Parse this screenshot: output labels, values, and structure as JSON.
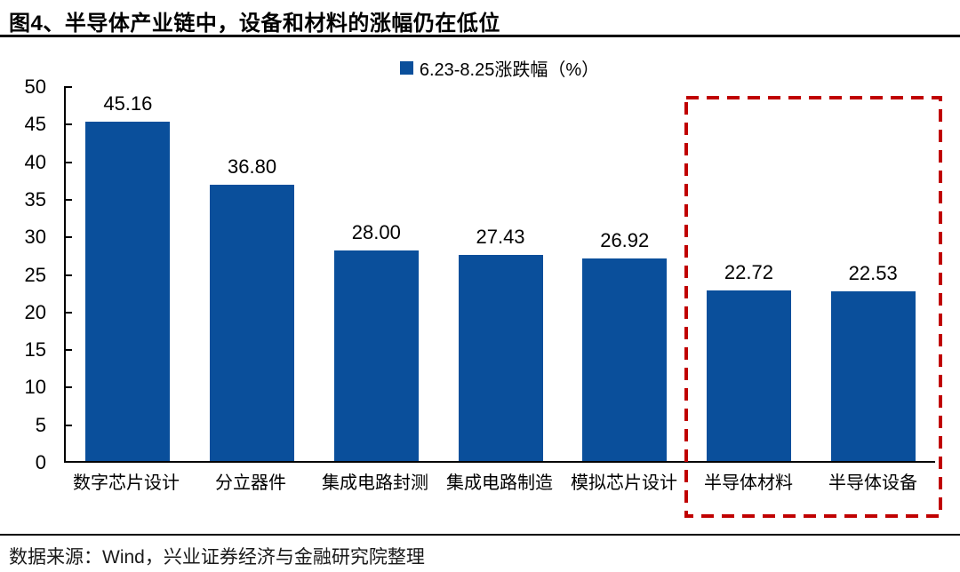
{
  "title": "图4、半导体产业链中，设备和材料的涨幅仍在低位",
  "legend": {
    "label": "6.23-8.25涨跌幅（%）"
  },
  "footer": {
    "source": "数据来源：Wind，兴业证券经济与金融研究院整理"
  },
  "colors": {
    "bar": "#0a4f9b",
    "highlight_box": "#c00000",
    "axis": "#000000",
    "text": "#000000"
  },
  "chart_data": {
    "type": "bar",
    "title": "图4、半导体产业链中，设备和材料的涨幅仍在低位",
    "series_name": "6.23-8.25涨跌幅（%）",
    "categories": [
      "数字芯片设计",
      "分立器件",
      "集成电路封测",
      "集成电路制造",
      "模拟芯片设计",
      "半导体材料",
      "半导体设备"
    ],
    "values": [
      45.16,
      36.8,
      28.0,
      27.43,
      26.92,
      22.72,
      22.53
    ],
    "value_labels": [
      "45.16",
      "36.80",
      "28.00",
      "27.43",
      "26.92",
      "22.72",
      "22.53"
    ],
    "xlabel": "",
    "ylabel": "",
    "ylim": [
      0,
      50
    ],
    "y_ticks": [
      0,
      5,
      10,
      15,
      20,
      25,
      30,
      35,
      40,
      45,
      50
    ],
    "grid": false,
    "legend_position": "top-center",
    "highlighted_categories": [
      "半导体材料",
      "半导体设备"
    ],
    "highlight_style": "red-dashed-rectangle",
    "source_note": "数据来源：Wind，兴业证券经济与金融研究院整理"
  }
}
